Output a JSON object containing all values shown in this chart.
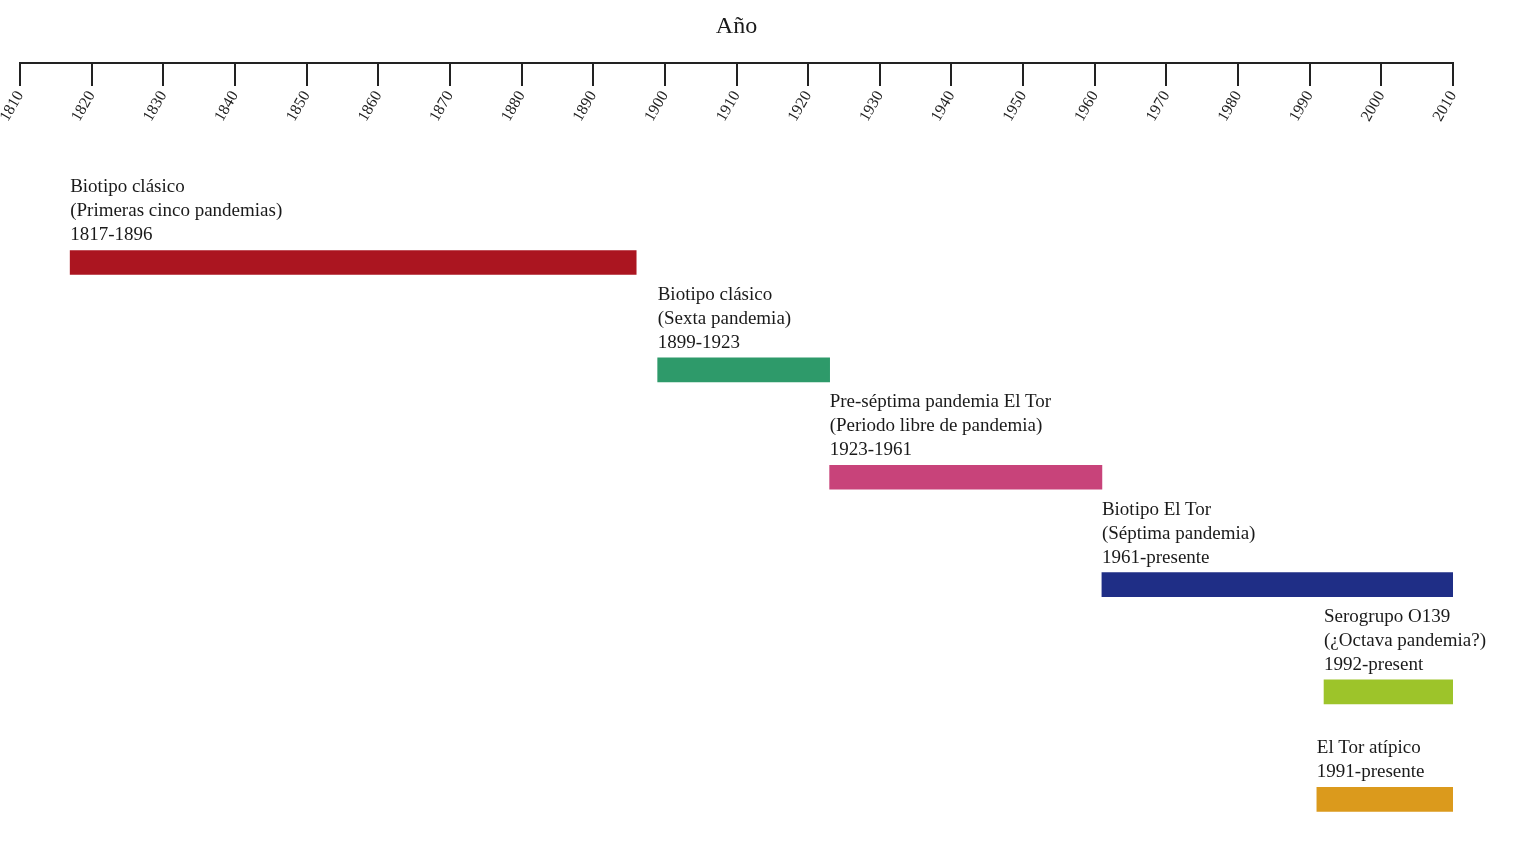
{
  "chart_data": {
    "type": "bar",
    "orientation": "horizontal",
    "xlabel": "Año",
    "categories": [
      null,
      null,
      null,
      null,
      null,
      null
    ],
    "annotations": [
      "Biotipo clásico\n(Primeras cinco pandemias)\n1817-1896",
      "Biotipo clásico\n(Sexta pandemia)\n1899-1923",
      "Pre-séptima pandemia El Tor\n(Periodo libre de pandemia)\n1923-1961",
      "Biotipo El Tor\n(Séptima pandemia)\n1961-presente",
      "Serogrupo O139\n(¿Octava pandemia?)\n1992-present",
      "El Tor atípico\n1991-presente"
    ],
    "base": [
      1817,
      1899,
      1923,
      1961,
      1992,
      1991
    ],
    "values": [
      79,
      24,
      38,
      49,
      18,
      19
    ],
    "colors": [
      "#ab1520",
      "#2e9a6a",
      "#c8437a",
      "#1f2e86",
      "#9dc42a",
      "#db9a1c"
    ],
    "xlim": [
      1810,
      2010
    ],
    "xticks": [
      1810,
      1820,
      1830,
      1840,
      1850,
      1860,
      1870,
      1880,
      1890,
      1900,
      1910,
      1920,
      1930,
      1940,
      1950,
      1960,
      1970,
      1980,
      1990,
      2000,
      2010
    ],
    "tick_labels": "x",
    "grid": false,
    "legend": false
  }
}
